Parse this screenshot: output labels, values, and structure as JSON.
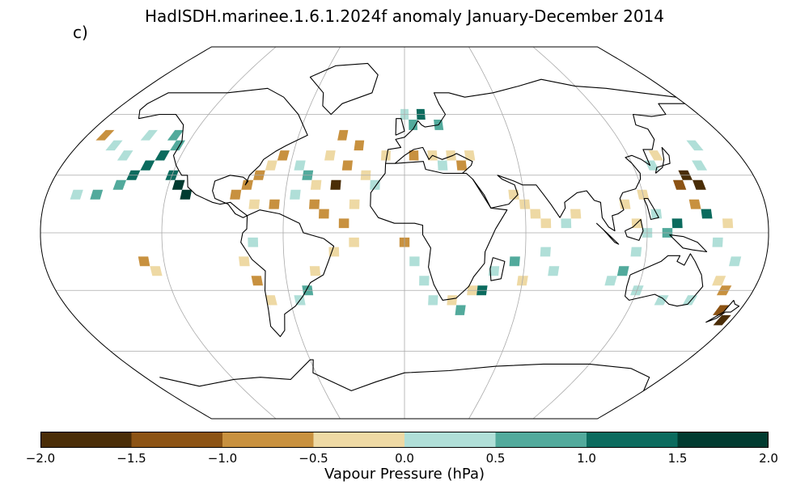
{
  "title": "HadISDH.marinee.1.6.1.2024f anomaly January-December 2014",
  "panel_label": "c)",
  "colorbar": {
    "label": "Vapour Pressure (hPa)",
    "ticks": [
      "−2.0",
      "−1.5",
      "−1.0",
      "−0.5",
      "0.0",
      "0.5",
      "1.0",
      "1.5",
      "2.0"
    ],
    "colors": [
      "#4a2d07",
      "#8c5314",
      "#c8913f",
      "#eed9a4",
      "#b0dfd8",
      "#52aa9c",
      "#0b6b5e",
      "#003b30"
    ]
  },
  "map_cells": [
    {
      "lon": -140,
      "lat": 30,
      "v": 1.2
    },
    {
      "lon": -135,
      "lat": 35,
      "v": 1.2
    },
    {
      "lon": -130,
      "lat": 40,
      "v": 1.2
    },
    {
      "lon": -125,
      "lat": 45,
      "v": 0.8
    },
    {
      "lon": -150,
      "lat": 40,
      "v": 0.3
    },
    {
      "lon": -160,
      "lat": 45,
      "v": 0.3
    },
    {
      "lon": -145,
      "lat": 50,
      "v": 0.3
    },
    {
      "lon": -130,
      "lat": 50,
      "v": 0.8
    },
    {
      "lon": -120,
      "lat": 30,
      "v": 1.2
    },
    {
      "lon": -110,
      "lat": 20,
      "v": 1.8
    },
    {
      "lon": -115,
      "lat": 25,
      "v": 1.8
    },
    {
      "lon": -155,
      "lat": 20,
      "v": 0.8
    },
    {
      "lon": -145,
      "lat": 25,
      "v": 0.8
    },
    {
      "lon": -170,
      "lat": 50,
      "v": -0.7
    },
    {
      "lon": -165,
      "lat": 20,
      "v": 0.3
    },
    {
      "lon": -80,
      "lat": 25,
      "v": -0.7
    },
    {
      "lon": -75,
      "lat": 30,
      "v": -0.7
    },
    {
      "lon": -70,
      "lat": 35,
      "v": -0.3
    },
    {
      "lon": -65,
      "lat": 40,
      "v": -0.7
    },
    {
      "lon": -55,
      "lat": 35,
      "v": 0.3
    },
    {
      "lon": -50,
      "lat": 30,
      "v": 0.8
    },
    {
      "lon": -45,
      "lat": 25,
      "v": -0.3
    },
    {
      "lon": -40,
      "lat": 40,
      "v": -0.3
    },
    {
      "lon": -30,
      "lat": 35,
      "v": -0.7
    },
    {
      "lon": -25,
      "lat": 45,
      "v": -0.7
    },
    {
      "lon": -35,
      "lat": 50,
      "v": -0.7
    },
    {
      "lon": -20,
      "lat": 30,
      "v": -0.3
    },
    {
      "lon": -15,
      "lat": 25,
      "v": 0.3
    },
    {
      "lon": -10,
      "lat": 40,
      "v": -0.3
    },
    {
      "lon": -45,
      "lat": 15,
      "v": -0.7
    },
    {
      "lon": -40,
      "lat": 10,
      "v": -0.7
    },
    {
      "lon": -30,
      "lat": 5,
      "v": -0.7
    },
    {
      "lon": -25,
      "lat": 15,
      "v": -0.3
    },
    {
      "lon": -55,
      "lat": 20,
      "v": 0.3
    },
    {
      "lon": -65,
      "lat": 15,
      "v": -0.7
    },
    {
      "lon": -75,
      "lat": 15,
      "v": -0.3
    },
    {
      "lon": -85,
      "lat": 20,
      "v": -0.7
    },
    {
      "lon": -35,
      "lat": 25,
      "v": -1.6
    },
    {
      "lon": 0,
      "lat": 60,
      "v": 0.3
    },
    {
      "lon": 5,
      "lat": 55,
      "v": 0.8
    },
    {
      "lon": 10,
      "lat": 60,
      "v": 1.2
    },
    {
      "lon": 20,
      "lat": 55,
      "v": 0.8
    },
    {
      "lon": 15,
      "lat": 40,
      "v": -0.3
    },
    {
      "lon": 5,
      "lat": 40,
      "v": -0.7
    },
    {
      "lon": 25,
      "lat": 40,
      "v": -0.3
    },
    {
      "lon": 30,
      "lat": 35,
      "v": -0.7
    },
    {
      "lon": 35,
      "lat": 40,
      "v": -0.3
    },
    {
      "lon": 20,
      "lat": 35,
      "v": 0.3
    },
    {
      "lon": 55,
      "lat": 20,
      "v": -0.3
    },
    {
      "lon": 60,
      "lat": 15,
      "v": -0.3
    },
    {
      "lon": 65,
      "lat": 10,
      "v": -0.3
    },
    {
      "lon": 80,
      "lat": 5,
      "v": 0.3
    },
    {
      "lon": 85,
      "lat": 10,
      "v": -0.3
    },
    {
      "lon": 70,
      "lat": 5,
      "v": -0.3
    },
    {
      "lon": 110,
      "lat": 15,
      "v": -0.3
    },
    {
      "lon": 115,
      "lat": 5,
      "v": -0.3
    },
    {
      "lon": 120,
      "lat": 20,
      "v": -0.3
    },
    {
      "lon": 125,
      "lat": 10,
      "v": 0.3
    },
    {
      "lon": 130,
      "lat": 0,
      "v": 0.8
    },
    {
      "lon": 135,
      "lat": 5,
      "v": 1.2
    },
    {
      "lon": 140,
      "lat": 25,
      "v": -1.2
    },
    {
      "lon": 145,
      "lat": 30,
      "v": -1.6
    },
    {
      "lon": 150,
      "lat": 25,
      "v": -1.8
    },
    {
      "lon": 130,
      "lat": 35,
      "v": 0.3
    },
    {
      "lon": 135,
      "lat": 40,
      "v": -0.3
    },
    {
      "lon": 145,
      "lat": 15,
      "v": -0.7
    },
    {
      "lon": 150,
      "lat": 10,
      "v": 1.2
    },
    {
      "lon": 160,
      "lat": 5,
      "v": -0.3
    },
    {
      "lon": 155,
      "lat": 35,
      "v": 0.3
    },
    {
      "lon": 160,
      "lat": 45,
      "v": 0.3
    },
    {
      "lon": 120,
      "lat": 0,
      "v": 0.3
    },
    {
      "lon": 115,
      "lat": -10,
      "v": 0.3
    },
    {
      "lon": 110,
      "lat": -20,
      "v": 0.8
    },
    {
      "lon": 105,
      "lat": -25,
      "v": 0.3
    },
    {
      "lon": 120,
      "lat": -30,
      "v": 0.3
    },
    {
      "lon": 135,
      "lat": -35,
      "v": 0.3
    },
    {
      "lon": 150,
      "lat": -35,
      "v": 0.3
    },
    {
      "lon": 160,
      "lat": -25,
      "v": -0.3
    },
    {
      "lon": 165,
      "lat": -30,
      "v": -0.7
    },
    {
      "lon": 170,
      "lat": -40,
      "v": -1.2
    },
    {
      "lon": 175,
      "lat": -45,
      "v": -1.6
    },
    {
      "lon": 165,
      "lat": -15,
      "v": 0.3
    },
    {
      "lon": 155,
      "lat": -5,
      "v": 0.3
    },
    {
      "lon": -75,
      "lat": -5,
      "v": 0.3
    },
    {
      "lon": -80,
      "lat": -15,
      "v": -0.3
    },
    {
      "lon": -75,
      "lat": -25,
      "v": -0.7
    },
    {
      "lon": -70,
      "lat": -35,
      "v": -0.3
    },
    {
      "lon": -55,
      "lat": -35,
      "v": 0.3
    },
    {
      "lon": -50,
      "lat": -30,
      "v": 0.8
    },
    {
      "lon": -45,
      "lat": -20,
      "v": -0.3
    },
    {
      "lon": -35,
      "lat": -10,
      "v": -0.3
    },
    {
      "lon": -25,
      "lat": -5,
      "v": -0.3
    },
    {
      "lon": -130,
      "lat": -15,
      "v": -0.7
    },
    {
      "lon": -125,
      "lat": -20,
      "v": -0.3
    },
    {
      "lon": 0,
      "lat": -5,
      "v": -0.7
    },
    {
      "lon": 5,
      "lat": -15,
      "v": 0.3
    },
    {
      "lon": 10,
      "lat": -25,
      "v": 0.3
    },
    {
      "lon": 15,
      "lat": -35,
      "v": 0.3
    },
    {
      "lon": 25,
      "lat": -35,
      "v": -0.3
    },
    {
      "lon": 35,
      "lat": -30,
      "v": -0.3
    },
    {
      "lon": 40,
      "lat": -30,
      "v": 1.2
    },
    {
      "lon": 45,
      "lat": -20,
      "v": 0.3
    },
    {
      "lon": 55,
      "lat": -15,
      "v": 0.8
    },
    {
      "lon": 60,
      "lat": -25,
      "v": -0.3
    },
    {
      "lon": 70,
      "lat": -10,
      "v": 0.3
    },
    {
      "lon": 75,
      "lat": -20,
      "v": 0.3
    },
    {
      "lon": 30,
      "lat": -40,
      "v": 0.8
    }
  ]
}
